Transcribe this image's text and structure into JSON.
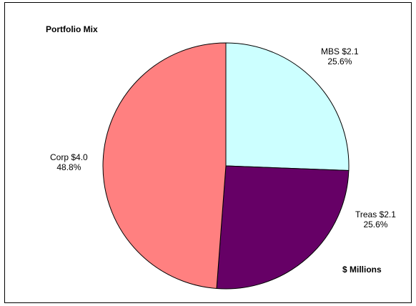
{
  "chart_data": {
    "type": "pie",
    "title": "Portfolio Mix",
    "units_label": "$ Millions",
    "slices": [
      {
        "name": "MBS",
        "value": 2.1,
        "value_label": "$2.1",
        "percent": 25.6,
        "percent_label": "25.6%",
        "color": "#ccffff"
      },
      {
        "name": "Treas",
        "value": 2.1,
        "value_label": "$2.1",
        "percent": 25.6,
        "percent_label": "25.6%",
        "color": "#660066"
      },
      {
        "name": "Corp",
        "value": 4.0,
        "value_label": "$4.0",
        "percent": 48.8,
        "percent_label": "48.8%",
        "color": "#ff8080"
      }
    ]
  }
}
